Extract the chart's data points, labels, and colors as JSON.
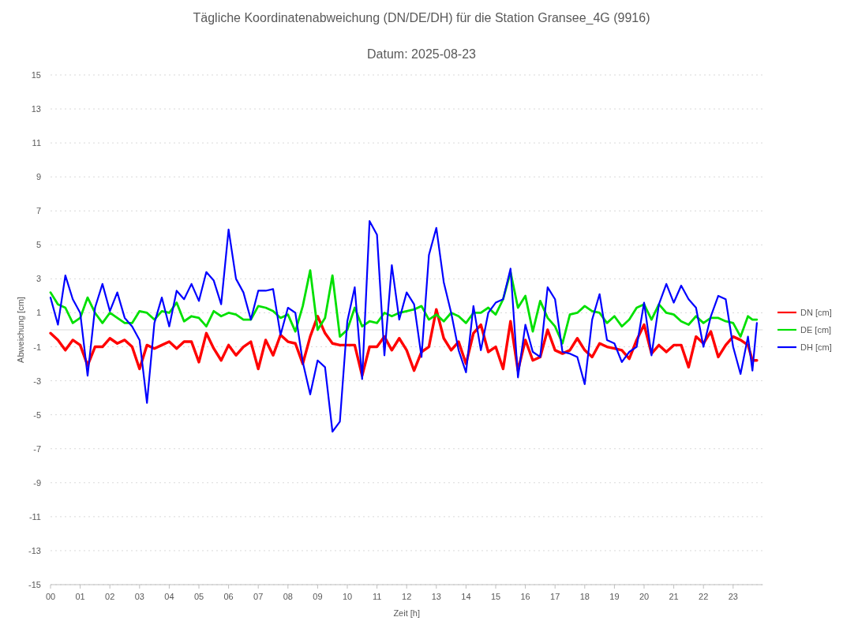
{
  "chart_data": {
    "type": "line",
    "title": "Tägliche Koordinatenabweichung (DN/DE/DH) für die Station Gransee_4G (9916)",
    "subtitle": "Datum: 2025-08-23",
    "xlabel": "Zeit [h]",
    "ylabel": "Abweichung [cm]",
    "x": [
      0,
      0.25,
      0.5,
      0.75,
      1,
      1.25,
      1.5,
      1.75,
      2,
      2.25,
      2.5,
      2.75,
      3,
      3.25,
      3.5,
      3.75,
      4,
      4.25,
      4.5,
      4.75,
      5,
      5.25,
      5.5,
      5.75,
      6,
      6.25,
      6.5,
      6.75,
      7,
      7.25,
      7.5,
      7.75,
      8,
      8.25,
      8.5,
      8.75,
      9,
      9.25,
      9.5,
      9.75,
      10,
      10.25,
      10.5,
      10.75,
      11,
      11.25,
      11.5,
      11.75,
      12,
      12.25,
      12.5,
      12.75,
      13,
      13.25,
      13.5,
      13.75,
      14,
      14.25,
      14.5,
      14.75,
      15,
      15.25,
      15.5,
      15.75,
      16,
      16.25,
      16.5,
      16.75,
      17,
      17.25,
      17.5,
      17.75,
      18,
      18.25,
      18.5,
      18.75,
      19,
      19.25,
      19.5,
      19.75,
      20,
      20.25,
      20.5,
      20.75,
      21,
      21.25,
      21.5,
      21.75,
      22,
      22.25,
      22.5,
      22.75,
      23,
      23.25,
      23.5,
      23.65,
      23.8
    ],
    "series": [
      {
        "name": "DN [cm]",
        "color": "#ff0000",
        "values": [
          -0.2,
          -0.6,
          -1.2,
          -0.6,
          -0.9,
          -2.1,
          -1.0,
          -1.0,
          -0.5,
          -0.8,
          -0.6,
          -1.0,
          -2.3,
          -0.9,
          -1.1,
          -0.9,
          -0.7,
          -1.1,
          -0.7,
          -0.7,
          -1.9,
          -0.2,
          -1.1,
          -1.8,
          -0.9,
          -1.5,
          -1.0,
          -0.7,
          -2.3,
          -0.6,
          -1.5,
          -0.3,
          -0.7,
          -0.8,
          -2.0,
          -0.4,
          0.8,
          -0.2,
          -0.8,
          -0.9,
          -0.9,
          -0.9,
          -2.7,
          -1.0,
          -1.0,
          -0.4,
          -1.2,
          -0.5,
          -1.2,
          -2.4,
          -1.3,
          -1.0,
          1.2,
          -0.5,
          -1.2,
          -0.7,
          -2.0,
          -0.2,
          0.3,
          -1.3,
          -1.0,
          -2.3,
          0.5,
          -2.4,
          -0.6,
          -1.8,
          -1.6,
          0.0,
          -1.2,
          -1.4,
          -1.2,
          -0.5,
          -1.2,
          -1.6,
          -0.8,
          -1.0,
          -1.1,
          -1.2,
          -1.7,
          -0.6,
          0.3,
          -1.4,
          -0.9,
          -1.3,
          -0.9,
          -0.9,
          -2.2,
          -0.4,
          -0.8,
          -0.1,
          -1.6,
          -0.9,
          -0.4,
          -0.6,
          -0.9,
          -1.8,
          -1.8
        ]
      },
      {
        "name": "DE [cm]",
        "color": "#00e000",
        "values": [
          2.2,
          1.5,
          1.3,
          0.4,
          0.7,
          1.9,
          1.0,
          0.4,
          1.0,
          0.7,
          0.4,
          0.4,
          1.1,
          1.0,
          0.6,
          1.1,
          1.0,
          1.6,
          0.5,
          0.8,
          0.7,
          0.2,
          1.1,
          0.8,
          1.0,
          0.9,
          0.6,
          0.6,
          1.4,
          1.3,
          1.1,
          0.7,
          0.9,
          -0.1,
          1.4,
          3.5,
          0.0,
          0.7,
          3.2,
          -0.4,
          0.0,
          1.3,
          0.2,
          0.5,
          0.4,
          1.0,
          0.8,
          1.0,
          1.1,
          1.2,
          1.4,
          0.6,
          0.9,
          0.5,
          1.0,
          0.8,
          0.4,
          1.0,
          1.0,
          1.3,
          0.9,
          1.8,
          3.4,
          1.3,
          2.0,
          -0.1,
          1.7,
          0.7,
          0.2,
          -0.8,
          0.9,
          1.0,
          1.4,
          1.1,
          1.0,
          0.4,
          0.8,
          0.2,
          0.6,
          1.3,
          1.5,
          0.6,
          1.5,
          1.0,
          0.9,
          0.5,
          0.3,
          0.8,
          0.4,
          0.7,
          0.7,
          0.5,
          0.4,
          -0.4,
          0.8,
          0.6,
          0.6
        ]
      },
      {
        "name": "DH [cm]",
        "color": "#0000ff",
        "values": [
          1.9,
          0.3,
          3.2,
          1.8,
          1.0,
          -2.7,
          1.3,
          2.7,
          1.1,
          2.2,
          0.7,
          0.2,
          -0.6,
          -4.3,
          0.4,
          1.9,
          0.2,
          2.3,
          1.8,
          2.7,
          1.7,
          3.4,
          2.9,
          1.5,
          5.9,
          3.0,
          2.2,
          0.6,
          2.3,
          2.3,
          2.4,
          -0.3,
          1.3,
          1.0,
          -1.9,
          -3.8,
          -1.8,
          -2.2,
          -6.0,
          -5.4,
          0.5,
          2.5,
          -2.9,
          6.4,
          5.6,
          -1.5,
          3.8,
          0.6,
          2.2,
          1.5,
          -1.6,
          4.4,
          6.0,
          2.8,
          1.0,
          -1.2,
          -2.5,
          1.4,
          -1.2,
          1.0,
          1.6,
          1.8,
          3.6,
          -2.8,
          0.3,
          -1.3,
          -1.6,
          2.5,
          1.8,
          -1.3,
          -1.4,
          -1.6,
          -3.2,
          0.6,
          2.1,
          -0.6,
          -0.8,
          -1.9,
          -1.3,
          -1.0,
          1.6,
          -1.5,
          1.5,
          2.7,
          1.6,
          2.6,
          1.8,
          1.3,
          -1.0,
          0.8,
          2.0,
          1.8,
          -1.0,
          -2.6,
          -0.4,
          -2.4,
          0.4
        ]
      }
    ],
    "xlim": [
      0,
      24
    ],
    "xticks": [
      {
        "value": 0,
        "label": "00"
      },
      {
        "value": 1,
        "label": "01"
      },
      {
        "value": 2,
        "label": "02"
      },
      {
        "value": 3,
        "label": "03"
      },
      {
        "value": 4,
        "label": "04"
      },
      {
        "value": 5,
        "label": "05"
      },
      {
        "value": 6,
        "label": "06"
      },
      {
        "value": 7,
        "label": "07"
      },
      {
        "value": 8,
        "label": "08"
      },
      {
        "value": 9,
        "label": "09"
      },
      10,
      11,
      12,
      13,
      14,
      15,
      16,
      17,
      18,
      19,
      20,
      21,
      22,
      23
    ],
    "ylim": [
      -15,
      15
    ],
    "yticks": [
      -15,
      -13,
      -11,
      -9,
      -7,
      -5,
      -3,
      -1,
      1,
      3,
      5,
      7,
      9,
      11,
      13,
      15
    ],
    "ref_lines": [
      {
        "axis": "y",
        "value": 0,
        "color": "#d9d9d9"
      }
    ],
    "grid": "y",
    "legend": "right",
    "marker": "none",
    "line_style": "solid"
  }
}
